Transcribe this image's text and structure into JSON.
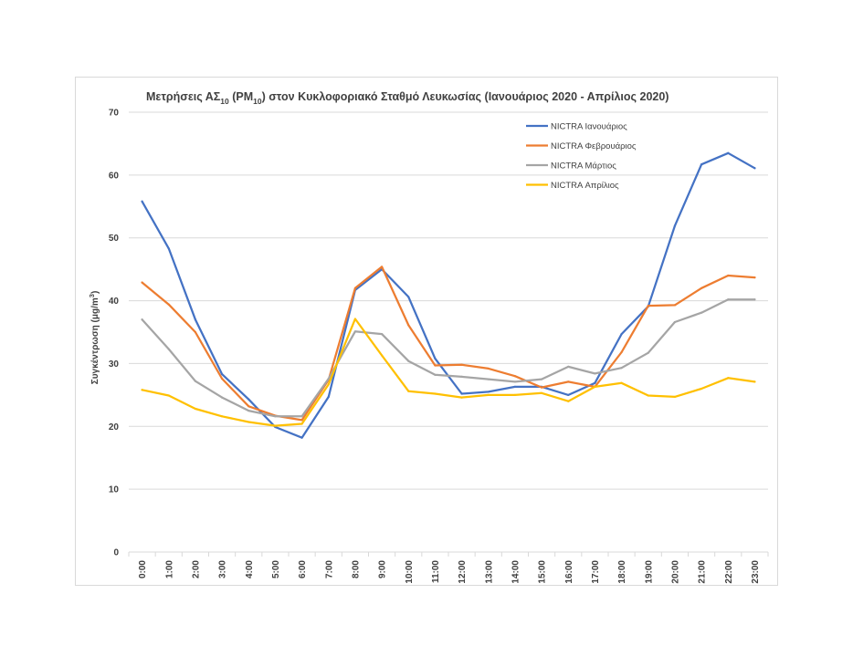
{
  "chart_data": {
    "type": "line",
    "title_parts": {
      "prefix": "Μετρήσεις ΑΣ",
      "sub1": "10",
      "mid": " (PM",
      "sub2": "10",
      "suffix": ")  στον Κυκλοφοριακό Σταθμό Λευκωσίας (Ιανουάριος 2020 - Απρίλιος 2020)"
    },
    "ylabel_parts": {
      "prefix": "Συγκέντρωση  (μg/m",
      "sup": "3",
      "suffix": ")"
    },
    "xlabel": "",
    "ylim": [
      0,
      70
    ],
    "yticks": [
      0,
      10,
      20,
      30,
      40,
      50,
      60,
      70
    ],
    "grid": true,
    "legend_position": "top-right",
    "categories": [
      "0:00",
      "1:00",
      "2:00",
      "3:00",
      "4:00",
      "5:00",
      "6:00",
      "7:00",
      "8:00",
      "9:00",
      "10:00",
      "11:00",
      "12:00",
      "13:00",
      "14:00",
      "15:00",
      "16:00",
      "17:00",
      "18:00",
      "19:00",
      "20:00",
      "21:00",
      "22:00",
      "23:00"
    ],
    "series": [
      {
        "name": "NICTRA Ιανουάριος",
        "color": "#4472c4",
        "values": [
          55.8,
          48.3,
          37.0,
          28.3,
          24.3,
          19.9,
          18.2,
          24.7,
          41.7,
          45.0,
          40.6,
          30.8,
          25.2,
          25.5,
          26.3,
          26.3,
          25.0,
          26.9,
          34.7,
          39.1,
          51.9,
          61.7,
          63.5,
          61.1
        ]
      },
      {
        "name": "NICTRA Φεβρουάριος",
        "color": "#ed7d31",
        "values": [
          42.9,
          39.4,
          35.0,
          27.6,
          23.2,
          21.7,
          21.0,
          27.4,
          42.0,
          45.4,
          36.1,
          29.7,
          29.8,
          29.2,
          28.0,
          26.2,
          27.1,
          26.3,
          31.8,
          39.2,
          39.3,
          42.0,
          44.0,
          43.7
        ]
      },
      {
        "name": "NICTRA Μάρτιος",
        "color": "#a5a5a5",
        "values": [
          37.0,
          32.3,
          27.2,
          24.6,
          22.5,
          21.6,
          21.6,
          27.6,
          35.1,
          34.7,
          30.4,
          28.2,
          27.9,
          27.5,
          27.1,
          27.5,
          29.5,
          28.4,
          29.3,
          31.7,
          36.6,
          38.1,
          40.2,
          40.2
        ]
      },
      {
        "name": "NICTRA Απρίλιος",
        "color": "#ffc000",
        "values": [
          25.8,
          24.9,
          22.8,
          21.6,
          20.7,
          20.1,
          20.4,
          26.7,
          37.1,
          31.3,
          25.6,
          25.2,
          24.6,
          25.0,
          25.0,
          25.3,
          24.0,
          26.3,
          26.9,
          24.9,
          24.7,
          26.0,
          27.7,
          27.1
        ]
      }
    ]
  }
}
